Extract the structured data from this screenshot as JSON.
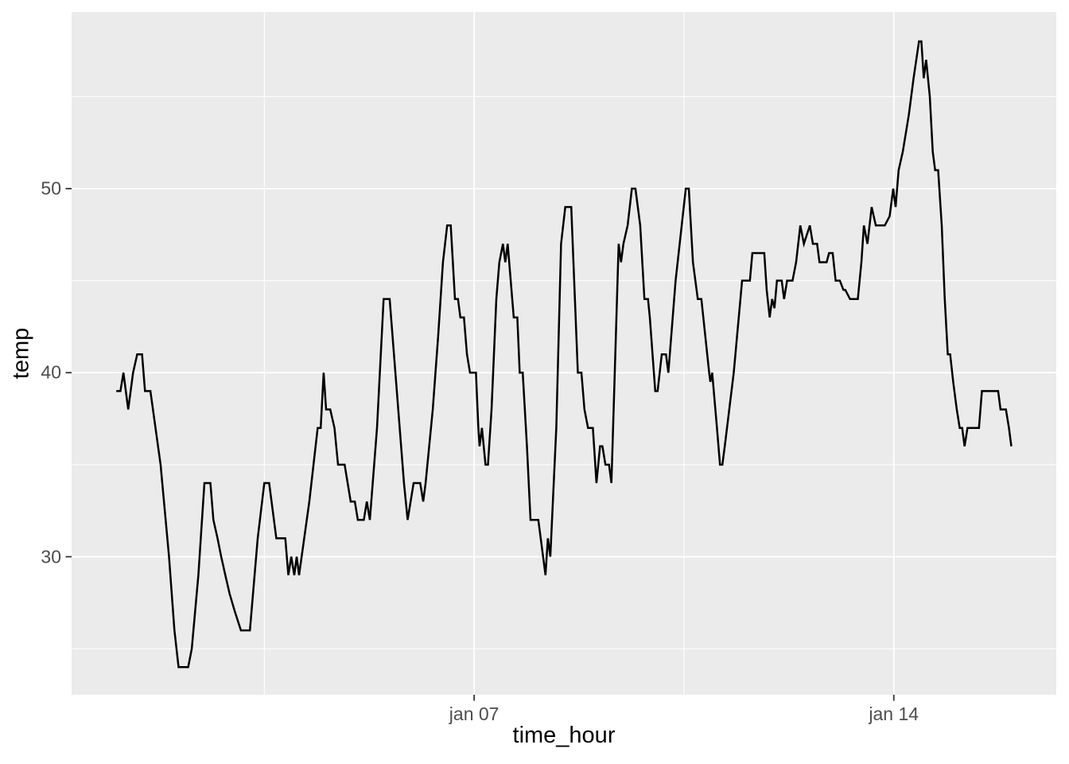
{
  "chart_data": {
    "type": "line",
    "title": "",
    "xlabel": "time_hour",
    "ylabel": "temp",
    "x_unit": "day of January (1.0 = Jan 01 00:00, fractional = hour of day)",
    "xlim": [
      0.285,
      16.71
    ],
    "ylim": [
      22.5,
      59.6
    ],
    "x_ticks": [
      {
        "value": 7,
        "label": "jan 07"
      },
      {
        "value": 14,
        "label": "jan 14"
      }
    ],
    "x_minor": [
      3.5,
      10.5
    ],
    "y_ticks": [
      {
        "value": 30,
        "label": "30"
      },
      {
        "value": 40,
        "label": "40"
      },
      {
        "value": 50,
        "label": "50"
      }
    ],
    "y_minor": [
      25,
      35,
      45,
      55
    ],
    "grid": true,
    "legend": "none",
    "colors": {
      "panel_background": "#EBEBEB",
      "page_background": "#FFFFFF",
      "grid_major": "#FFFFFF",
      "grid_minor": "#FFFFFF",
      "line": "#000000",
      "tick_mark": "#333333",
      "tick_label": "#4D4D4D",
      "axis_title": "#000000"
    },
    "series": [
      {
        "name": "temp",
        "points": [
          [
            1.03,
            39
          ],
          [
            1.1,
            39
          ],
          [
            1.15,
            40
          ],
          [
            1.23,
            38
          ],
          [
            1.31,
            40
          ],
          [
            1.38,
            41
          ],
          [
            1.46,
            41
          ],
          [
            1.51,
            39
          ],
          [
            1.6,
            39
          ],
          [
            1.77,
            35
          ],
          [
            1.91,
            30
          ],
          [
            2.0,
            26
          ],
          [
            2.07,
            24
          ],
          [
            2.23,
            24
          ],
          [
            2.29,
            25
          ],
          [
            2.4,
            29
          ],
          [
            2.5,
            34
          ],
          [
            2.6,
            34
          ],
          [
            2.65,
            32
          ],
          [
            2.72,
            31
          ],
          [
            2.78,
            30
          ],
          [
            2.85,
            29
          ],
          [
            2.92,
            28
          ],
          [
            3.01,
            27
          ],
          [
            3.11,
            26
          ],
          [
            3.26,
            26
          ],
          [
            3.39,
            31
          ],
          [
            3.5,
            34
          ],
          [
            3.58,
            34
          ],
          [
            3.7,
            31
          ],
          [
            3.85,
            31
          ],
          [
            3.9,
            29
          ],
          [
            3.95,
            30
          ],
          [
            4.0,
            29
          ],
          [
            4.04,
            30
          ],
          [
            4.08,
            29
          ],
          [
            4.25,
            33
          ],
          [
            4.39,
            37
          ],
          [
            4.44,
            37
          ],
          [
            4.49,
            40
          ],
          [
            4.53,
            38
          ],
          [
            4.6,
            38
          ],
          [
            4.67,
            37
          ],
          [
            4.73,
            35
          ],
          [
            4.84,
            35
          ],
          [
            4.94,
            33
          ],
          [
            5.01,
            33
          ],
          [
            5.06,
            32
          ],
          [
            5.16,
            32
          ],
          [
            5.21,
            33
          ],
          [
            5.26,
            32
          ],
          [
            5.38,
            37
          ],
          [
            5.49,
            44
          ],
          [
            5.59,
            44
          ],
          [
            5.71,
            39
          ],
          [
            5.83,
            34
          ],
          [
            5.89,
            32
          ],
          [
            5.99,
            34
          ],
          [
            6.1,
            34
          ],
          [
            6.15,
            33
          ],
          [
            6.19,
            34
          ],
          [
            6.31,
            38
          ],
          [
            6.4,
            42
          ],
          [
            6.48,
            46
          ],
          [
            6.55,
            48
          ],
          [
            6.61,
            48
          ],
          [
            6.68,
            44
          ],
          [
            6.73,
            44
          ],
          [
            6.77,
            43
          ],
          [
            6.83,
            43
          ],
          [
            6.88,
            41
          ],
          [
            6.93,
            40
          ],
          [
            7.03,
            40
          ],
          [
            7.07,
            37
          ],
          [
            7.09,
            36
          ],
          [
            7.13,
            37
          ],
          [
            7.19,
            35
          ],
          [
            7.23,
            35
          ],
          [
            7.29,
            38
          ],
          [
            7.37,
            44
          ],
          [
            7.42,
            46
          ],
          [
            7.48,
            47
          ],
          [
            7.52,
            46
          ],
          [
            7.56,
            47
          ],
          [
            7.61,
            45
          ],
          [
            7.66,
            43
          ],
          [
            7.72,
            43
          ],
          [
            7.76,
            40
          ],
          [
            7.81,
            40
          ],
          [
            7.88,
            36
          ],
          [
            7.94,
            32
          ],
          [
            8.07,
            32
          ],
          [
            8.11,
            31
          ],
          [
            8.19,
            29
          ],
          [
            8.23,
            31
          ],
          [
            8.27,
            30
          ],
          [
            8.37,
            37
          ],
          [
            8.45,
            47
          ],
          [
            8.52,
            49
          ],
          [
            8.62,
            49
          ],
          [
            8.68,
            44
          ],
          [
            8.73,
            40
          ],
          [
            8.79,
            40
          ],
          [
            8.84,
            38
          ],
          [
            8.9,
            37
          ],
          [
            8.98,
            37
          ],
          [
            9.04,
            34
          ],
          [
            9.1,
            36
          ],
          [
            9.14,
            36
          ],
          [
            9.19,
            35
          ],
          [
            9.25,
            35
          ],
          [
            9.29,
            34
          ],
          [
            9.41,
            47
          ],
          [
            9.45,
            46
          ],
          [
            9.49,
            47
          ],
          [
            9.56,
            48
          ],
          [
            9.63,
            50
          ],
          [
            9.69,
            50
          ],
          [
            9.77,
            48
          ],
          [
            9.84,
            44
          ],
          [
            9.9,
            44
          ],
          [
            9.93,
            43
          ],
          [
            10.02,
            39
          ],
          [
            10.06,
            39
          ],
          [
            10.13,
            41
          ],
          [
            10.2,
            41
          ],
          [
            10.24,
            40
          ],
          [
            10.36,
            45
          ],
          [
            10.53,
            50
          ],
          [
            10.58,
            50
          ],
          [
            10.65,
            46
          ],
          [
            10.73,
            44
          ],
          [
            10.79,
            44
          ],
          [
            10.92,
            40
          ],
          [
            10.94,
            39.5
          ],
          [
            10.97,
            40
          ],
          [
            11.05,
            37
          ],
          [
            11.1,
            35
          ],
          [
            11.14,
            35
          ],
          [
            11.18,
            36
          ],
          [
            11.33,
            40
          ],
          [
            11.47,
            45
          ],
          [
            11.6,
            45
          ],
          [
            11.64,
            46.5
          ],
          [
            11.84,
            46.5
          ],
          [
            11.88,
            44.5
          ],
          [
            11.93,
            43
          ],
          [
            11.97,
            44
          ],
          [
            12.01,
            43.5
          ],
          [
            12.05,
            45
          ],
          [
            12.13,
            45
          ],
          [
            12.17,
            44
          ],
          [
            12.22,
            45
          ],
          [
            12.31,
            45
          ],
          [
            12.37,
            46
          ],
          [
            12.44,
            48
          ],
          [
            12.5,
            47
          ],
          [
            12.6,
            48
          ],
          [
            12.65,
            47
          ],
          [
            12.72,
            47
          ],
          [
            12.76,
            46
          ],
          [
            12.88,
            46
          ],
          [
            12.92,
            46.5
          ],
          [
            12.98,
            46.5
          ],
          [
            13.03,
            45
          ],
          [
            13.1,
            45
          ],
          [
            13.16,
            44.5
          ],
          [
            13.19,
            44.5
          ],
          [
            13.27,
            44
          ],
          [
            13.4,
            44
          ],
          [
            13.46,
            46
          ],
          [
            13.5,
            48
          ],
          [
            13.56,
            47
          ],
          [
            13.63,
            49
          ],
          [
            13.7,
            48
          ],
          [
            13.85,
            48
          ],
          [
            13.93,
            48.5
          ],
          [
            13.99,
            50
          ],
          [
            14.03,
            49
          ],
          [
            14.08,
            51
          ],
          [
            14.15,
            52
          ],
          [
            14.25,
            54
          ],
          [
            14.33,
            56
          ],
          [
            14.42,
            58
          ],
          [
            14.46,
            58
          ],
          [
            14.5,
            56
          ],
          [
            14.54,
            57
          ],
          [
            14.6,
            55
          ],
          [
            14.65,
            52
          ],
          [
            14.69,
            51
          ],
          [
            14.74,
            51
          ],
          [
            14.8,
            48
          ],
          [
            14.85,
            44
          ],
          [
            14.9,
            41
          ],
          [
            14.94,
            41
          ],
          [
            14.99,
            39.5
          ],
          [
            15.05,
            38
          ],
          [
            15.1,
            37
          ],
          [
            15.14,
            37
          ],
          [
            15.18,
            36
          ],
          [
            15.23,
            37
          ],
          [
            15.42,
            37
          ],
          [
            15.47,
            39
          ],
          [
            15.74,
            39
          ],
          [
            15.78,
            38
          ],
          [
            15.87,
            38
          ],
          [
            15.92,
            37
          ],
          [
            15.96,
            36
          ]
        ]
      }
    ]
  }
}
